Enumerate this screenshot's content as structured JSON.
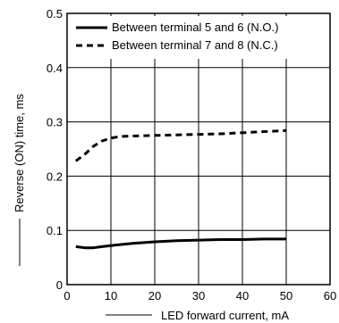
{
  "chart_data": {
    "type": "line",
    "title": "",
    "xlabel": "LED forward current, mA",
    "ylabel": "Reverse (ON) time, ms",
    "xlim": [
      0,
      60
    ],
    "ylim": [
      0,
      0.5
    ],
    "x_ticks": [
      "0",
      "10",
      "20",
      "30",
      "40",
      "50",
      "60"
    ],
    "y_ticks": [
      "0",
      "0.1",
      "0.2",
      "0.3",
      "0.4",
      "0.5"
    ],
    "x_tick_values": [
      0,
      10,
      20,
      30,
      40,
      50,
      60
    ],
    "y_tick_values": [
      0,
      0.1,
      0.2,
      0.3,
      0.4,
      0.5
    ],
    "grid": true,
    "legend_position": "top-right",
    "series": [
      {
        "name": "Between terminal 5 and 6 (N.O.)",
        "style": "solid",
        "color": "#000000",
        "x": [
          2,
          4,
          6,
          8,
          10,
          15,
          20,
          25,
          30,
          35,
          40,
          45,
          50
        ],
        "y": [
          0.07,
          0.068,
          0.068,
          0.07,
          0.072,
          0.076,
          0.079,
          0.081,
          0.082,
          0.083,
          0.083,
          0.084,
          0.084
        ]
      },
      {
        "name": "Between terminal 7 and 8 (N.C.)",
        "style": "dashed",
        "color": "#000000",
        "x": [
          2,
          4,
          6,
          8,
          10,
          12,
          15,
          20,
          25,
          30,
          35,
          40,
          45,
          50
        ],
        "y": [
          0.228,
          0.24,
          0.255,
          0.265,
          0.27,
          0.273,
          0.274,
          0.275,
          0.276,
          0.277,
          0.278,
          0.28,
          0.282,
          0.284
        ]
      }
    ]
  }
}
